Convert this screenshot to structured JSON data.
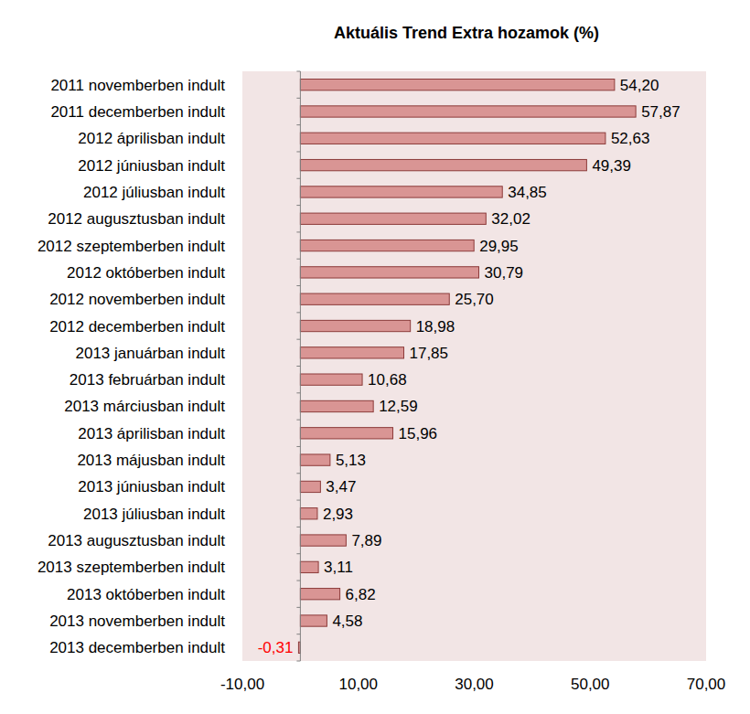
{
  "chart_data": {
    "type": "bar",
    "title": "Aktuális Trend Extra hozamok (%)",
    "orientation": "horizontal",
    "categories": [
      "2011 novemberben indult",
      "2011 decemberben indult",
      "2012 áprilisban indult",
      "2012 júniusban indult",
      "2012 júliusban indult",
      "2012 augusztusban indult",
      "2012 szeptemberben indult",
      "2012 októberben indult",
      "2012 novemberben indult",
      "2012 decemberben indult",
      "2013 januárban indult",
      "2013 februárban indult",
      "2013 márciusban indult",
      "2013 áprilisban indult",
      "2013 májusban indult",
      "2013 júniusban indult",
      "2013 júliusban indult",
      "2013 augusztusban indult",
      "2013 szeptemberben indult",
      "2013 októberben indult",
      "2013 novemberben indult",
      "2013 decemberben indult"
    ],
    "values": [
      54.2,
      57.87,
      52.63,
      49.39,
      34.85,
      32.02,
      29.95,
      30.79,
      25.7,
      18.98,
      17.85,
      10.68,
      12.59,
      15.96,
      5.13,
      3.47,
      2.93,
      7.89,
      3.11,
      6.82,
      4.58,
      -0.31
    ],
    "value_labels": [
      "54,20",
      "57,87",
      "52,63",
      "49,39",
      "34,85",
      "32,02",
      "29,95",
      "30,79",
      "25,70",
      "18,98",
      "17,85",
      "10,68",
      "12,59",
      "15,96",
      "5,13",
      "3,47",
      "2,93",
      "7,89",
      "3,11",
      "6,82",
      "4,58",
      "-0,31"
    ],
    "color": "#d99594",
    "xlim": [
      -10,
      70
    ],
    "xticks": [
      {
        "value": -10,
        "label": "-10,00"
      },
      {
        "value": 10,
        "label": "10,00"
      },
      {
        "value": 30,
        "label": "30,00"
      },
      {
        "value": 50,
        "label": "50,00"
      },
      {
        "value": 70,
        "label": "70,00"
      }
    ],
    "grid": false,
    "data_labels": true
  }
}
